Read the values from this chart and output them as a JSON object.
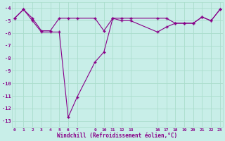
{
  "line1_x": [
    0,
    1,
    2,
    3,
    4,
    5,
    6,
    7,
    9,
    10,
    11,
    12,
    13,
    16,
    17,
    18,
    19,
    20,
    21,
    22,
    23
  ],
  "line1_y": [
    -4.8,
    -4.1,
    -4.8,
    -5.8,
    -5.8,
    -4.8,
    -4.8,
    -4.8,
    -4.8,
    -5.8,
    -4.8,
    -4.8,
    -4.8,
    -4.8,
    -4.8,
    -5.2,
    -5.2,
    -5.2,
    -4.7,
    -5.0,
    -4.1
  ],
  "line2_x": [
    0,
    1,
    2,
    3,
    4,
    5,
    6,
    7,
    9,
    10,
    11,
    12,
    13,
    16,
    17,
    18,
    19,
    20,
    21,
    22,
    23
  ],
  "line2_y": [
    -4.8,
    -4.1,
    -5.0,
    -5.9,
    -5.9,
    -5.9,
    -12.7,
    -11.1,
    -8.3,
    -7.5,
    -4.8,
    -5.0,
    -5.0,
    -5.9,
    -5.5,
    -5.2,
    -5.2,
    -5.2,
    -4.7,
    -5.0,
    -4.1
  ],
  "color": "#880088",
  "bg_color": "#C8EEE8",
  "grid_color": "#AADDCC",
  "xlabel": "Windchill (Refroidissement éolien,°C)",
  "xticks": [
    0,
    1,
    2,
    3,
    4,
    5,
    6,
    7,
    9,
    10,
    11,
    12,
    13,
    16,
    17,
    18,
    19,
    20,
    21,
    22,
    23
  ],
  "yticks": [
    -4,
    -5,
    -6,
    -7,
    -8,
    -9,
    -10,
    -11,
    -12,
    -13
  ],
  "ylim": [
    -13.5,
    -3.5
  ],
  "xlim": [
    -0.3,
    23.3
  ]
}
